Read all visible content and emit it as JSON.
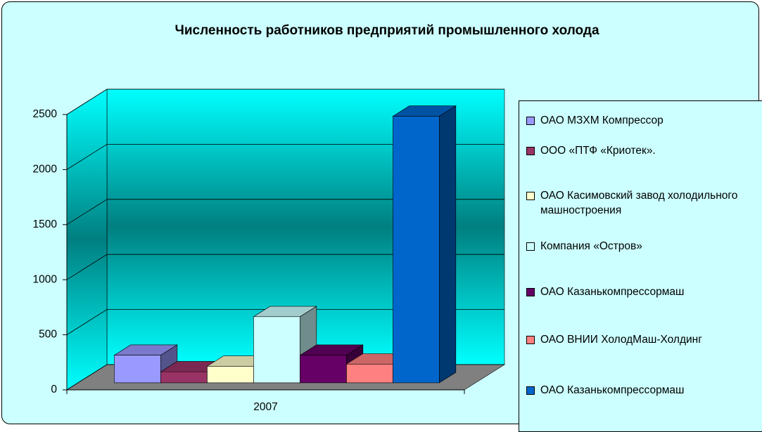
{
  "chart_data": {
    "type": "bar",
    "title": "Численность работников предприятий промышленного холода",
    "categories": [
      "2007"
    ],
    "series": [
      {
        "name": "ОАО МЗХМ  Компрессор",
        "color": "#9999ff",
        "values": [
          250
        ]
      },
      {
        "name": "ООО «ПТФ «Криотек».",
        "color": "#993366",
        "values": [
          100
        ]
      },
      {
        "name": "ОАО Касимовский завод холодильного машностроения",
        "color": "#ffffcc",
        "values": [
          150
        ]
      },
      {
        "name": "Компания «Остров»",
        "color": "#ccffff",
        "values": [
          600
        ]
      },
      {
        "name": "ОАО Казанькомпрессормаш",
        "color": "#660066",
        "values": [
          250
        ]
      },
      {
        "name": "ОАО ВНИИ ХолодМаш-Холдинг",
        "color": "#ff8080",
        "values": [
          170
        ]
      },
      {
        "name": "ОАО Казанькомпрессормаш",
        "color": "#0066cc",
        "values": [
          2420
        ]
      }
    ],
    "ylim": [
      0,
      2500
    ],
    "yticks": [
      0,
      500,
      1000,
      1500,
      2000,
      2500
    ],
    "grid": true,
    "legend": "right"
  }
}
